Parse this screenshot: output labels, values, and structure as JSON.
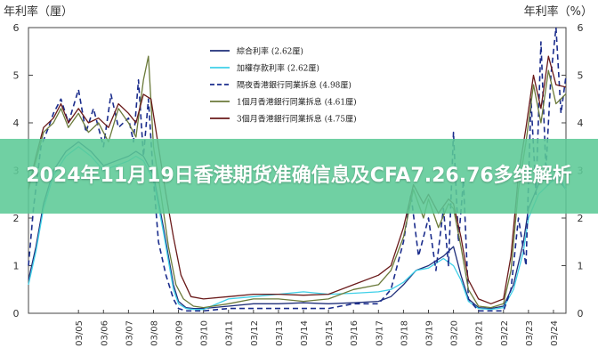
{
  "banner": {
    "title": "2024年11月19日香港期货准确信息及CFA7.26.76多维解析"
  },
  "chart_data": {
    "type": "line",
    "y_left_label": "年利率（厘）",
    "y_right_label": "年利率（%）",
    "ylim": [
      0,
      6
    ],
    "yticks": [
      0,
      1,
      2,
      3,
      4,
      5,
      6
    ],
    "x_tick_labels": [
      "03/05",
      "03/06",
      "03/07",
      "03/08",
      "03/09",
      "03/10",
      "03/11",
      "03/12",
      "03/13",
      "03/14",
      "03/15",
      "03/16",
      "03/17",
      "03/18",
      "03/19",
      "03/20",
      "03/21",
      "03/22",
      "03/23",
      "03/24"
    ],
    "x_range": [
      2003.0,
      2024.5
    ],
    "grid": false,
    "legend_position": "top-center",
    "series": [
      {
        "name": "綜合利率 (2.62厘)",
        "color": "#1f2f7a",
        "dash": "solid",
        "x": [
          2003.0,
          2003.3,
          2003.6,
          2004.0,
          2004.5,
          2005.0,
          2005.5,
          2006.0,
          2006.5,
          2007.0,
          2007.3,
          2007.6,
          2008.0,
          2008.4,
          2008.8,
          2009.0,
          2009.3,
          2009.6,
          2010,
          2011,
          2012,
          2013,
          2014,
          2015,
          2016,
          2017,
          2017.5,
          2018,
          2018.5,
          2019,
          2019.3,
          2019.6,
          2020.0,
          2020.3,
          2020.6,
          2021,
          2021.5,
          2022.0,
          2022.4,
          2022.8,
          2023.0,
          2023.4,
          2023.8,
          2024.2,
          2024.5
        ],
        "y": [
          0.7,
          1.4,
          2.3,
          3.0,
          3.4,
          3.6,
          3.4,
          3.1,
          3.2,
          3.3,
          3.4,
          3.3,
          2.9,
          1.8,
          0.6,
          0.25,
          0.12,
          0.1,
          0.1,
          0.15,
          0.2,
          0.2,
          0.22,
          0.2,
          0.22,
          0.25,
          0.35,
          0.6,
          0.9,
          1.0,
          1.1,
          1.2,
          1.4,
          0.8,
          0.3,
          0.12,
          0.1,
          0.15,
          0.6,
          1.5,
          2.2,
          2.7,
          2.9,
          2.8,
          2.6
        ]
      },
      {
        "name": "加權存款利率 (2.62厘)",
        "color": "#3fd0e8",
        "dash": "solid",
        "x": [
          2003.0,
          2003.3,
          2003.6,
          2004.0,
          2004.5,
          2005.0,
          2005.5,
          2006.0,
          2006.5,
          2007.0,
          2007.3,
          2007.6,
          2008.0,
          2008.4,
          2008.8,
          2009.0,
          2009.3,
          2009.6,
          2010,
          2011,
          2012,
          2013,
          2014,
          2015,
          2016,
          2017,
          2017.5,
          2018,
          2018.5,
          2019,
          2019.3,
          2019.6,
          2020.0,
          2020.3,
          2020.6,
          2021,
          2021.5,
          2022.0,
          2022.4,
          2022.8,
          2023.0,
          2023.4,
          2023.8,
          2024.2,
          2024.5
        ],
        "y": [
          0.6,
          1.3,
          2.2,
          2.9,
          3.3,
          3.5,
          3.3,
          3.0,
          3.1,
          3.2,
          3.3,
          3.2,
          2.8,
          1.7,
          0.5,
          0.2,
          0.1,
          0.08,
          0.08,
          0.3,
          0.35,
          0.4,
          0.45,
          0.4,
          0.42,
          0.45,
          0.5,
          0.65,
          0.9,
          0.95,
          1.05,
          1.15,
          1.0,
          0.7,
          0.25,
          0.1,
          0.08,
          0.12,
          0.5,
          1.3,
          2.0,
          2.5,
          2.7,
          2.9,
          2.6
        ]
      },
      {
        "name": "隔夜香港銀行同業拆息 (4.98厘)",
        "color": "#1a2c8c",
        "dash": "dash",
        "x": [
          2003.0,
          2003.2,
          2003.5,
          2003.8,
          2004.0,
          2004.3,
          2004.6,
          2005.0,
          2005.3,
          2005.6,
          2006.0,
          2006.3,
          2006.6,
          2007.0,
          2007.2,
          2007.4,
          2007.6,
          2007.8,
          2008.0,
          2008.2,
          2008.5,
          2008.8,
          2009.0,
          2009.3,
          2009.6,
          2010,
          2011,
          2012,
          2013,
          2014,
          2015,
          2016,
          2017,
          2017.5,
          2018,
          2018.3,
          2018.6,
          2019,
          2019.3,
          2019.6,
          2019.8,
          2020.0,
          2020.2,
          2020.4,
          2020.6,
          2021,
          2021.5,
          2022.0,
          2022.3,
          2022.6,
          2022.9,
          2023.1,
          2023.3,
          2023.5,
          2023.7,
          2023.9,
          2024.1,
          2024.3,
          2024.5
        ],
        "y": [
          1.0,
          2.2,
          3.5,
          3.9,
          4.2,
          4.5,
          4.0,
          4.7,
          3.8,
          4.3,
          3.5,
          4.6,
          3.9,
          4.1,
          3.6,
          4.9,
          3.3,
          4.5,
          2.8,
          1.5,
          0.8,
          0.3,
          0.1,
          0.05,
          0.05,
          0.05,
          0.1,
          0.1,
          0.1,
          0.1,
          0.1,
          0.2,
          0.2,
          0.5,
          1.5,
          2.5,
          1.2,
          2.0,
          0.9,
          2.2,
          1.0,
          3.8,
          1.5,
          2.8,
          0.3,
          0.05,
          0.05,
          0.05,
          0.5,
          2.0,
          1.0,
          4.5,
          2.5,
          5.7,
          3.0,
          5.0,
          6.0,
          4.2,
          4.98
        ]
      },
      {
        "name": "1個月香港銀行同業拆息 (4.61厘)",
        "color": "#6b7a3a",
        "dash": "solid",
        "x": [
          2003.0,
          2003.3,
          2003.6,
          2004.0,
          2004.3,
          2004.6,
          2005.0,
          2005.4,
          2005.8,
          2006.2,
          2006.6,
          2007.0,
          2007.3,
          2007.6,
          2007.8,
          2008.0,
          2008.3,
          2008.6,
          2008.9,
          2009.2,
          2009.6,
          2010,
          2011,
          2012,
          2013,
          2014,
          2015,
          2016,
          2017,
          2017.5,
          2018,
          2018.4,
          2018.8,
          2019,
          2019.4,
          2019.8,
          2020.0,
          2020.3,
          2020.6,
          2021,
          2021.5,
          2022.0,
          2022.3,
          2022.6,
          2022.9,
          2023.2,
          2023.5,
          2023.8,
          2024.1,
          2024.5
        ],
        "y": [
          2.7,
          3.2,
          3.8,
          4.0,
          4.3,
          3.9,
          4.2,
          3.8,
          4.0,
          3.6,
          4.3,
          4.0,
          3.7,
          4.9,
          5.4,
          3.5,
          2.5,
          1.4,
          0.6,
          0.3,
          0.15,
          0.12,
          0.2,
          0.3,
          0.3,
          0.25,
          0.3,
          0.5,
          0.6,
          0.9,
          1.6,
          2.6,
          2.0,
          2.4,
          1.8,
          2.3,
          2.2,
          1.4,
          0.5,
          0.15,
          0.12,
          0.2,
          0.9,
          2.6,
          3.6,
          4.8,
          4.0,
          5.1,
          4.4,
          4.61
        ]
      },
      {
        "name": "3個月香港銀行同業拆息 (4.75厘)",
        "color": "#6a1a1a",
        "dash": "solid",
        "x": [
          2003.0,
          2003.3,
          2003.6,
          2004.0,
          2004.3,
          2004.6,
          2005.0,
          2005.4,
          2005.8,
          2006.2,
          2006.6,
          2007.0,
          2007.3,
          2007.6,
          2007.9,
          2008.2,
          2008.5,
          2008.8,
          2009.1,
          2009.5,
          2010,
          2011,
          2012,
          2013,
          2014,
          2015,
          2016,
          2017,
          2017.5,
          2018,
          2018.4,
          2018.8,
          2019,
          2019.4,
          2019.8,
          2020.0,
          2020.3,
          2020.6,
          2021,
          2021.5,
          2022.0,
          2022.3,
          2022.6,
          2022.9,
          2023.2,
          2023.5,
          2023.8,
          2024.1,
          2024.5
        ],
        "y": [
          2.6,
          3.3,
          3.9,
          4.1,
          4.4,
          4.0,
          4.3,
          4.0,
          4.1,
          3.9,
          4.4,
          4.2,
          4.0,
          4.6,
          4.5,
          3.5,
          2.5,
          1.6,
          0.8,
          0.35,
          0.3,
          0.35,
          0.4,
          0.4,
          0.38,
          0.4,
          0.6,
          0.8,
          1.0,
          1.8,
          2.7,
          2.3,
          2.5,
          2.1,
          2.4,
          2.3,
          1.6,
          0.7,
          0.3,
          0.2,
          0.3,
          1.2,
          2.9,
          3.9,
          5.0,
          4.3,
          5.4,
          4.8,
          4.75
        ]
      }
    ]
  }
}
